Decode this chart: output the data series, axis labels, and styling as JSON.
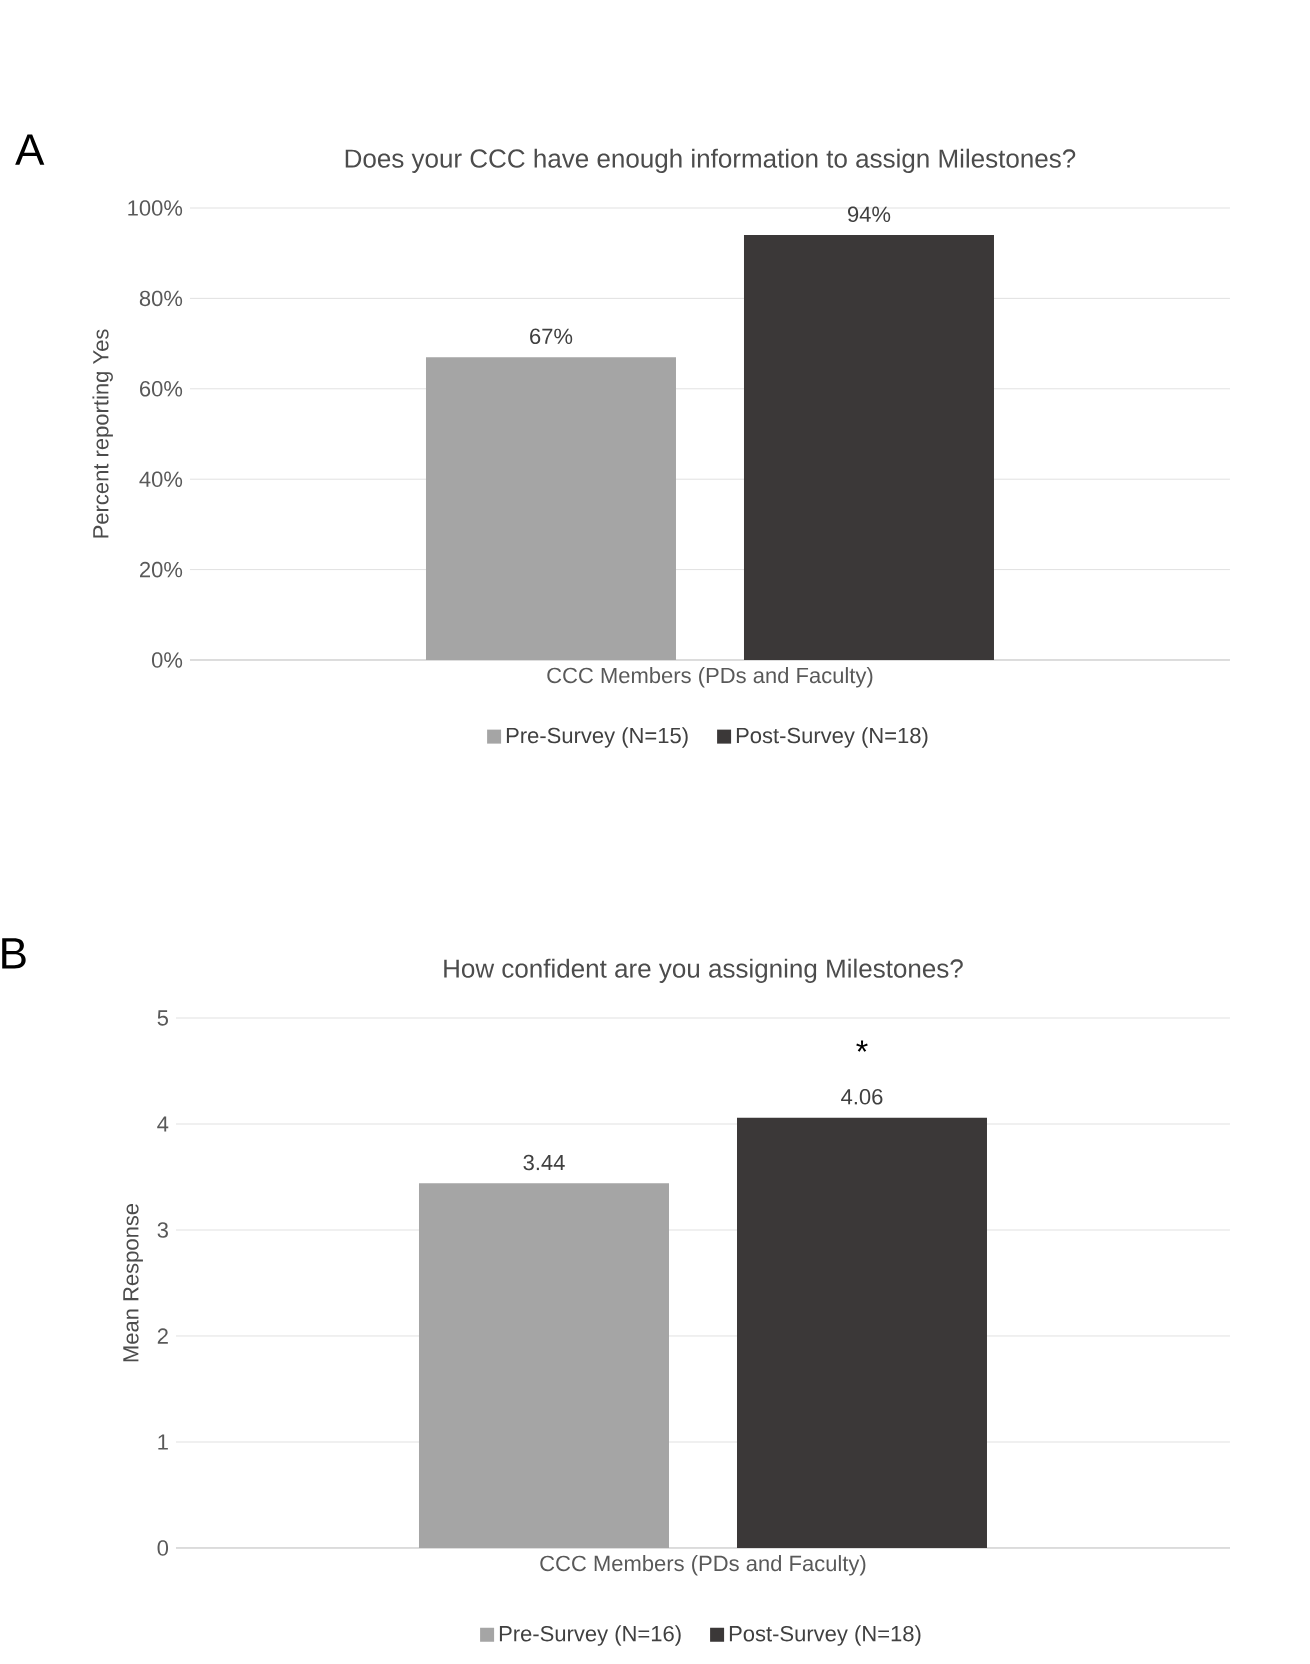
{
  "chart_data": [
    {
      "type": "bar",
      "title": "Does your CCC have enough information to assign Milestones?",
      "ylabel": "Percent reporting Yes",
      "categories": [
        "CCC Members (PDs and Faculty)"
      ],
      "series": [
        {
          "name": "Pre-Survey (N=15)",
          "color": "#a5a5a5",
          "values": [
            67
          ],
          "value_labels": [
            "67%"
          ]
        },
        {
          "name": "Post-Survey (N=18)",
          "color": "#3b3838",
          "values": [
            94
          ],
          "value_labels": [
            "94%"
          ]
        }
      ],
      "ylim": [
        0,
        100
      ],
      "yticks": [
        {
          "value": 0,
          "label": "0%"
        },
        {
          "value": 20,
          "label": "20%"
        },
        {
          "value": 40,
          "label": "40%"
        },
        {
          "value": 60,
          "label": "60%"
        },
        {
          "value": 80,
          "label": "80%"
        },
        {
          "value": 100,
          "label": "100%"
        }
      ],
      "grid": "y",
      "legend": "bottom",
      "annotations": [
        "A"
      ]
    },
    {
      "type": "bar",
      "title": "How confident are you assigning Milestones?",
      "ylabel": "Mean Response",
      "categories": [
        "CCC Members (PDs and Faculty)"
      ],
      "series": [
        {
          "name": "Pre-Survey (N=16)",
          "color": "#a5a5a5",
          "values": [
            3.44
          ],
          "value_labels": [
            "3.44"
          ]
        },
        {
          "name": "Post-Survey (N=18)",
          "color": "#3b3838",
          "values": [
            4.06
          ],
          "value_labels": [
            "4.06"
          ]
        }
      ],
      "ylim": [
        0,
        5
      ],
      "yticks": [
        0,
        1,
        2,
        3,
        4,
        5
      ],
      "grid": "y",
      "legend": "bottom",
      "annotations": [
        "B",
        "*"
      ]
    }
  ]
}
